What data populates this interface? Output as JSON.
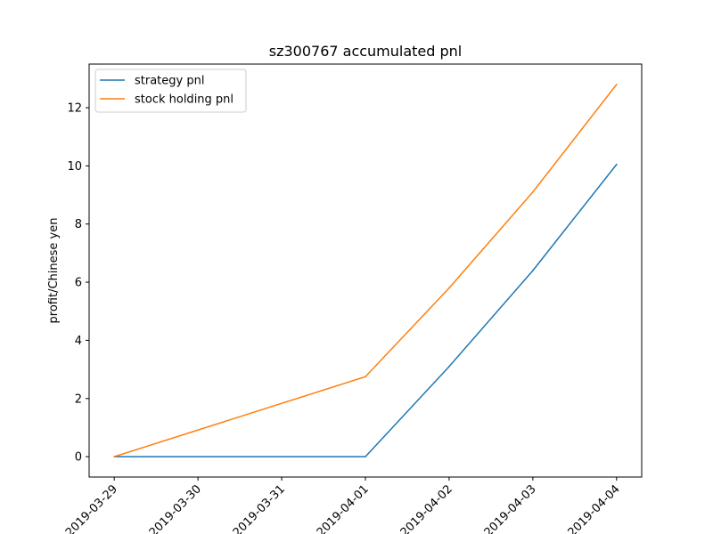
{
  "chart_data": {
    "type": "line",
    "title": "sz300767 accumulated pnl",
    "xlabel": "",
    "ylabel": "profit/Chinese yen",
    "x": [
      "2019-03-29",
      "2019-03-30",
      "2019-03-31",
      "2019-04-01",
      "2019-04-02",
      "2019-04-03",
      "2019-04-04"
    ],
    "xticks": [
      "2019-03-29",
      "2019-03-30",
      "2019-03-31",
      "2019-04-01",
      "2019-04-02",
      "2019-04-03",
      "2019-04-04"
    ],
    "yticks": [
      0,
      2,
      4,
      6,
      8,
      10,
      12
    ],
    "xlim": [
      "2019-03-28T16:48",
      "2019-04-04T07:12"
    ],
    "ylim": [
      -0.7,
      13.5
    ],
    "grid": false,
    "legend_position": "top-left",
    "series": [
      {
        "name": "strategy pnl",
        "color": "#1f77b4",
        "points": [
          [
            "2019-03-29",
            0
          ],
          [
            "2019-04-01",
            0
          ],
          [
            "2019-04-02",
            3.1
          ],
          [
            "2019-04-03",
            6.4
          ],
          [
            "2019-04-04",
            10.05
          ]
        ]
      },
      {
        "name": "stock holding pnl",
        "color": "#ff7f0e",
        "points": [
          [
            "2019-03-29",
            0
          ],
          [
            "2019-04-01",
            2.75
          ],
          [
            "2019-04-02",
            5.8
          ],
          [
            "2019-04-03",
            9.1
          ],
          [
            "2019-04-04",
            12.8
          ]
        ]
      }
    ]
  }
}
